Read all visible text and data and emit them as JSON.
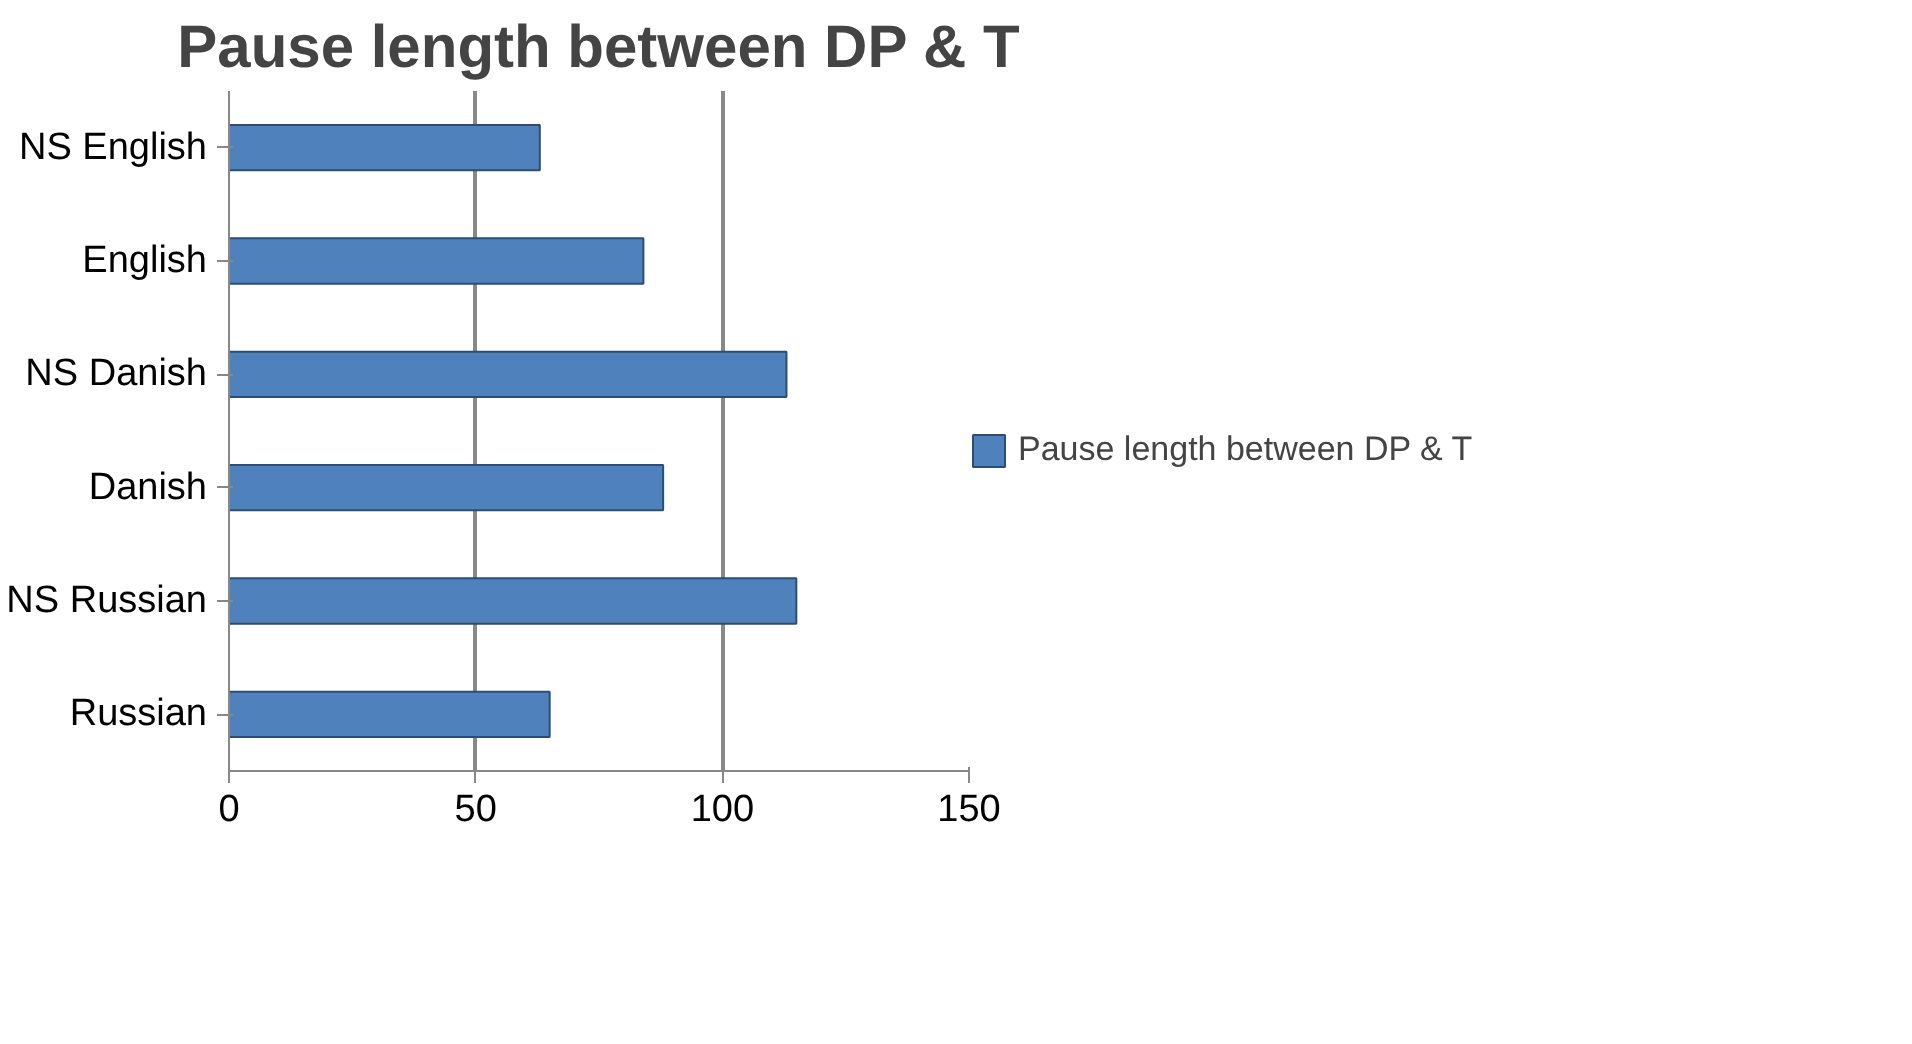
{
  "chart_data": {
    "type": "bar",
    "orientation": "horizontal",
    "title": "Pause length between DP & T",
    "categories": [
      "NS English",
      "English",
      "NS Danish",
      "Danish",
      "NS Russian",
      "Russian"
    ],
    "series": [
      {
        "name": "Pause length between DP & T",
        "color": "#4f81bd",
        "values": [
          63,
          84,
          113,
          88,
          115,
          65
        ]
      }
    ],
    "xlim": [
      0,
      150
    ],
    "xticks": [
      0,
      50,
      100,
      150
    ],
    "grid": "x",
    "legend": "right"
  }
}
